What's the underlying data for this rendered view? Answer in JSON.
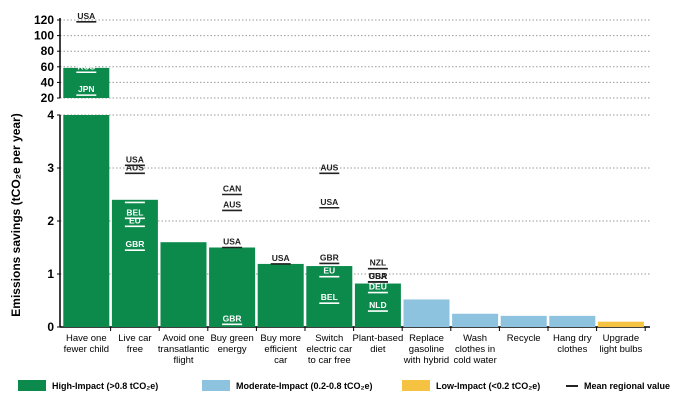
{
  "chart_data": {
    "type": "bar",
    "ylabel": "Emissions savings (tCO₂e per year)",
    "lower_axis": {
      "ylim": [
        0,
        4
      ],
      "ticks": [
        0,
        1,
        2,
        3,
        4
      ]
    },
    "upper_axis": {
      "ylim": [
        20,
        120
      ],
      "ticks": [
        20,
        40,
        60,
        80,
        100,
        120
      ]
    },
    "categories": [
      "Have one fewer child",
      "Live car free",
      "Avoid one transatlantic flight",
      "Buy green energy",
      "Buy more efficient car",
      "Switch electric car to car free",
      "Plant-based diet",
      "Replace gasoline with hybrid",
      "Wash clothes in cold water",
      "Recycle",
      "Hang dry clothes",
      "Upgrade light bulbs"
    ],
    "category_lines": [
      [
        "Have one",
        "fewer child"
      ],
      [
        "Live car",
        "free"
      ],
      [
        "Avoid one",
        "transatlantic",
        "flight"
      ],
      [
        "Buy green",
        "energy"
      ],
      [
        "Buy more",
        "efficient",
        "car"
      ],
      [
        "Switch",
        "electric car",
        "to car free"
      ],
      [
        "Plant-based",
        "diet"
      ],
      [
        "Replace",
        "gasoline",
        "with hybrid"
      ],
      [
        "Wash",
        "clothes in",
        "cold water"
      ],
      [
        "Recycle"
      ],
      [
        "Hang dry",
        "clothes"
      ],
      [
        "Upgrade",
        "light bulbs"
      ]
    ],
    "values": [
      58.6,
      2.4,
      1.6,
      1.5,
      1.19,
      1.15,
      0.82,
      0.52,
      0.25,
      0.21,
      0.21,
      0.1
    ],
    "impact": [
      "high",
      "high",
      "high",
      "high",
      "high",
      "high",
      "high",
      "moderate",
      "moderate",
      "moderate",
      "moderate",
      "low"
    ],
    "regional_values": [
      [
        {
          "label": "USA",
          "value": 117.7
        },
        {
          "label": "RUS",
          "value": 53
        },
        {
          "label": "JPN",
          "value": 23.7
        }
      ],
      [
        {
          "label": "USA",
          "value": 3.05
        },
        {
          "label": "AUS",
          "value": 2.9
        },
        {
          "label": "CAN",
          "value": 2.35
        },
        {
          "label": "BEL",
          "value": 2.05
        },
        {
          "label": "EU",
          "value": 1.9
        },
        {
          "label": "GBR",
          "value": 1.45
        }
      ],
      [],
      [
        {
          "label": "CAN",
          "value": 2.5
        },
        {
          "label": "AUS",
          "value": 2.2
        },
        {
          "label": "USA",
          "value": 1.5
        },
        {
          "label": "GBR",
          "value": 0.05
        }
      ],
      [
        {
          "label": "USA",
          "value": 1.19
        }
      ],
      [
        {
          "label": "AUS",
          "value": 2.9
        },
        {
          "label": "USA",
          "value": 2.25
        },
        {
          "label": "GBR",
          "value": 1.2
        },
        {
          "label": "EU",
          "value": 0.95
        },
        {
          "label": "BEL",
          "value": 0.45
        }
      ],
      [
        {
          "label": "NZL",
          "value": 1.1
        },
        {
          "label": "USA",
          "value": 0.85
        },
        {
          "label": "GBR",
          "value": 0.85
        },
        {
          "label": "DEU",
          "value": 0.65
        },
        {
          "label": "NLD",
          "value": 0.3
        }
      ],
      [],
      [],
      [],
      [],
      []
    ],
    "legend": [
      {
        "key": "high",
        "label": "High-Impact (>0.8 tCO₂e)"
      },
      {
        "key": "moderate",
        "label": "Moderate-Impact (0.2-0.8 tCO₂e)"
      },
      {
        "key": "low",
        "label": "Low-Impact (<0.2 tCO₂e)"
      },
      {
        "key": "mean",
        "label": "Mean regional value"
      }
    ]
  },
  "colors": {
    "high": "#0b8a4b",
    "moderate": "#8ec3e0",
    "low": "#f5c242",
    "mean": "#222222",
    "grid": "#9a9a9a"
  }
}
